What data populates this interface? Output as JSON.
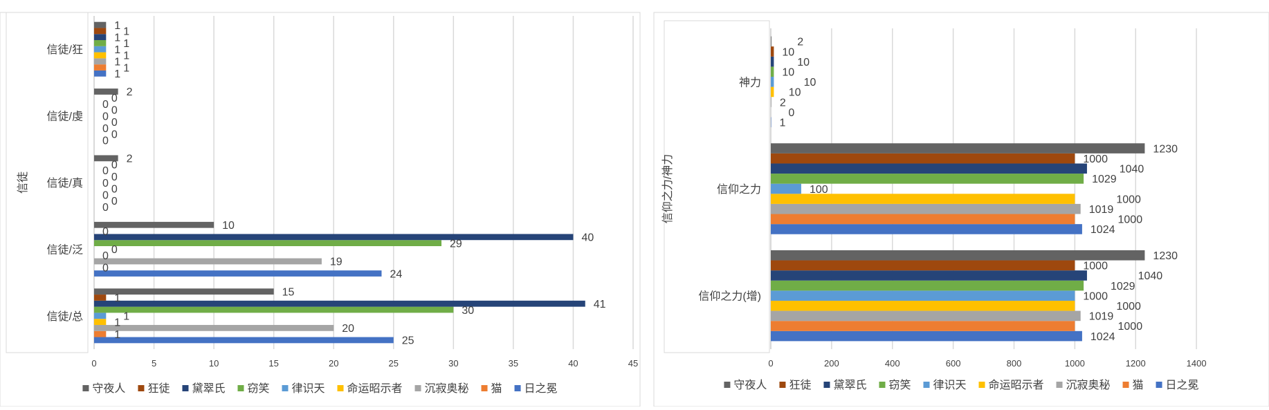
{
  "series_colors": {
    "守夜人": "#636363",
    "狂徒": "#9E480E",
    "黛翠氏": "#264478",
    "窃笑": "#70AD47",
    "律识天": "#5B9BD5",
    "命运昭示者": "#FFC000",
    "沉寂奥秘": "#A5A5A5",
    "猫": "#ED7D31",
    "日之冕": "#4472C4"
  },
  "chart_data": [
    {
      "type": "bar",
      "orientation": "horizontal",
      "ylabel": "信徒",
      "xlabel": "",
      "categories": [
        "信徒/总",
        "信徒/泛",
        "信徒/真",
        "信徒/虔",
        "信徒/狂"
      ],
      "xlim": [
        0,
        45
      ],
      "xticks": [
        0,
        5,
        10,
        15,
        20,
        25,
        30,
        35,
        40,
        45
      ],
      "grid": true,
      "legend": "bottom",
      "series": [
        {
          "name": "日之冕",
          "values": [
            25,
            24,
            0,
            0,
            1
          ]
        },
        {
          "name": "猫",
          "values": [
            1,
            0,
            0,
            0,
            1
          ]
        },
        {
          "name": "沉寂奥秘",
          "values": [
            20,
            19,
            0,
            0,
            1
          ]
        },
        {
          "name": "命运昭示者",
          "values": [
            1,
            0,
            0,
            0,
            1
          ]
        },
        {
          "name": "律识天",
          "values": [
            1,
            0,
            0,
            0,
            1
          ]
        },
        {
          "name": "窃笑",
          "values": [
            30,
            29,
            0,
            0,
            1
          ]
        },
        {
          "name": "黛翠氏",
          "values": [
            41,
            40,
            0,
            0,
            1
          ]
        },
        {
          "name": "狂徒",
          "values": [
            1,
            0,
            0,
            0,
            1
          ]
        },
        {
          "name": "守夜人",
          "values": [
            15,
            10,
            2,
            2,
            1
          ]
        }
      ]
    },
    {
      "type": "bar",
      "orientation": "horizontal",
      "ylabel": "信仰之力/神力",
      "xlabel": "",
      "categories": [
        "信仰之力(增)",
        "信仰之力",
        "神力"
      ],
      "xlim": [
        0,
        1600
      ],
      "xticks": [
        0,
        200,
        400,
        600,
        800,
        1000,
        1200,
        1400
      ],
      "grid": true,
      "legend": "bottom",
      "series": [
        {
          "name": "日之冕",
          "values": [
            1024,
            1024,
            1
          ]
        },
        {
          "name": "猫",
          "values": [
            1000,
            1000,
            0
          ]
        },
        {
          "name": "沉寂奥秘",
          "values": [
            1019,
            1019,
            2
          ]
        },
        {
          "name": "命运昭示者",
          "values": [
            1000,
            1000,
            10
          ]
        },
        {
          "name": "律识天",
          "values": [
            1000,
            100,
            10
          ]
        },
        {
          "name": "窃笑",
          "values": [
            1029,
            1029,
            10
          ]
        },
        {
          "name": "黛翠氏",
          "values": [
            1040,
            1040,
            10
          ]
        },
        {
          "name": "狂徒",
          "values": [
            1000,
            1000,
            10
          ]
        },
        {
          "name": "守夜人",
          "values": [
            1230,
            1230,
            2
          ]
        }
      ]
    }
  ]
}
